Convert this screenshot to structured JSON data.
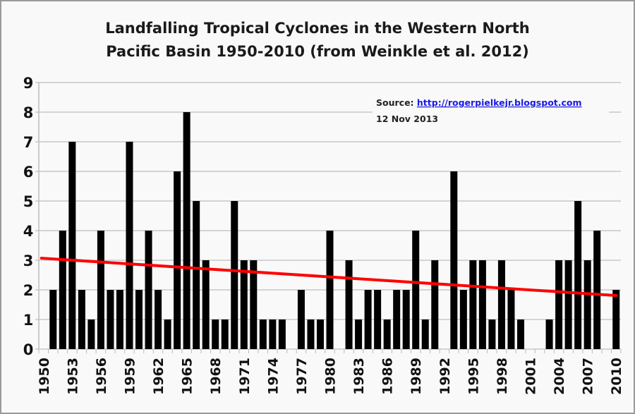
{
  "chart_data": {
    "type": "bar",
    "title": [
      "Landfalling Tropical Cyclones in the Western North",
      "Pacific Basin 1950-2010 (from Weinkle et al. 2012)"
    ],
    "xlabel": "",
    "ylabel": "",
    "ylim": [
      0,
      9
    ],
    "yticks": [
      "0",
      "1",
      "2",
      "3",
      "4",
      "5",
      "6",
      "7",
      "8",
      "9"
    ],
    "grid": true,
    "bar_color": "#000000",
    "trend_color": "#ff0000",
    "categories": [
      1950,
      1951,
      1952,
      1953,
      1954,
      1955,
      1956,
      1957,
      1958,
      1959,
      1960,
      1961,
      1962,
      1963,
      1964,
      1965,
      1966,
      1967,
      1968,
      1969,
      1970,
      1971,
      1972,
      1973,
      1974,
      1975,
      1976,
      1977,
      1978,
      1979,
      1980,
      1981,
      1982,
      1983,
      1984,
      1985,
      1986,
      1987,
      1988,
      1989,
      1990,
      1991,
      1992,
      1993,
      1994,
      1995,
      1996,
      1997,
      1998,
      1999,
      2000,
      2001,
      2002,
      2003,
      2004,
      2005,
      2006,
      2007,
      2008,
      2009,
      2010
    ],
    "xtick_labels": [
      "1950",
      "1953",
      "1956",
      "1959",
      "1962",
      "1965",
      "1968",
      "1971",
      "1974",
      "1977",
      "1980",
      "1983",
      "1986",
      "1989",
      "1992",
      "1995",
      "1998",
      "2001",
      "2004",
      "2007",
      "2010"
    ],
    "values": [
      0,
      2,
      4,
      7,
      2,
      1,
      4,
      2,
      2,
      7,
      2,
      4,
      2,
      1,
      6,
      8,
      5,
      3,
      1,
      1,
      5,
      3,
      3,
      1,
      1,
      1,
      0,
      2,
      1,
      1,
      4,
      0,
      3,
      1,
      2,
      2,
      1,
      2,
      2,
      4,
      1,
      3,
      0,
      6,
      2,
      3,
      3,
      1,
      3,
      2,
      1,
      0,
      0,
      1,
      3,
      3,
      5,
      3,
      4,
      0,
      2
    ],
    "trend": {
      "x": [
        1950,
        2010
      ],
      "y": [
        3.07,
        1.81
      ]
    },
    "annotation": {
      "source_label": "Source: ",
      "source_link": "http://rogerpielkejr.blogspot.com",
      "date": "12 Nov 2013"
    }
  }
}
